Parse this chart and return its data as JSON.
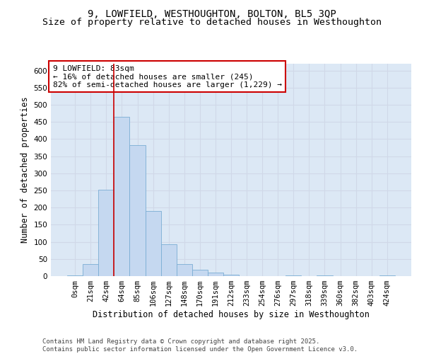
{
  "title_line1": "9, LOWFIELD, WESTHOUGHTON, BOLTON, BL5 3QP",
  "title_line2": "Size of property relative to detached houses in Westhoughton",
  "xlabel": "Distribution of detached houses by size in Westhoughton",
  "ylabel": "Number of detached properties",
  "annotation_line1": "9 LOWFIELD: 83sqm",
  "annotation_line2": "← 16% of detached houses are smaller (245)",
  "annotation_line3": "82% of semi-detached houses are larger (1,229) →",
  "bar_labels": [
    "0sqm",
    "21sqm",
    "42sqm",
    "64sqm",
    "85sqm",
    "106sqm",
    "127sqm",
    "148sqm",
    "170sqm",
    "191sqm",
    "212sqm",
    "233sqm",
    "254sqm",
    "276sqm",
    "297sqm",
    "318sqm",
    "339sqm",
    "360sqm",
    "382sqm",
    "403sqm",
    "424sqm"
  ],
  "bar_values": [
    2,
    35,
    253,
    466,
    383,
    191,
    93,
    36,
    18,
    11,
    4,
    0,
    0,
    0,
    2,
    0,
    2,
    0,
    0,
    0,
    2
  ],
  "bar_color": "#c5d8f0",
  "bar_edge_color": "#7aadd4",
  "vline_x": 2.5,
  "vline_color": "#cc0000",
  "ylim": [
    0,
    620
  ],
  "yticks": [
    0,
    50,
    100,
    150,
    200,
    250,
    300,
    350,
    400,
    450,
    500,
    550,
    600
  ],
  "grid_color": "#d0d8e8",
  "bg_color": "#dce8f5",
  "footer": "Contains HM Land Registry data © Crown copyright and database right 2025.\nContains public sector information licensed under the Open Government Licence v3.0.",
  "title_fontsize": 10,
  "subtitle_fontsize": 9.5,
  "axis_label_fontsize": 8.5,
  "tick_fontsize": 7.5,
  "annotation_fontsize": 8,
  "footer_fontsize": 6.5
}
